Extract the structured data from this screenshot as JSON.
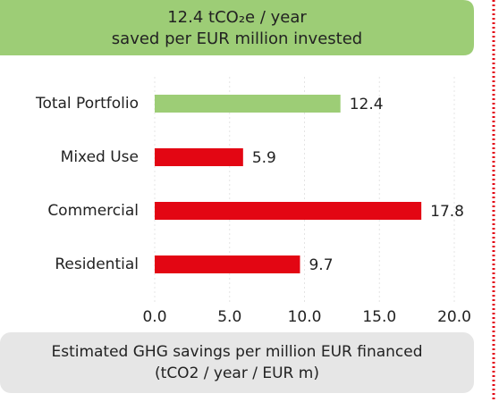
{
  "chart_data": {
    "type": "barh",
    "title": "12.4 tCO₂e / year",
    "subtitle": "saved per EUR million invested",
    "categories": [
      "Total Portfolio",
      "Mixed Use",
      "Commercial",
      "Residential"
    ],
    "values": [
      12.4,
      5.9,
      17.8,
      9.7
    ],
    "colors": [
      "#9dcd76",
      "#e30613",
      "#e30613",
      "#e30613"
    ],
    "xlim": [
      0,
      20
    ],
    "xticks": [
      {
        "value": 0,
        "label": "0.0"
      },
      {
        "value": 5,
        "label": "5.0"
      },
      {
        "value": 10,
        "label": "10.0"
      },
      {
        "value": 15,
        "label": "15.0"
      },
      {
        "value": 20,
        "label": "20.0"
      }
    ],
    "grid": true,
    "footnote": [
      "Estimated GHG savings per million EUR financed",
      "(tCO2 / year / EUR m)"
    ]
  }
}
